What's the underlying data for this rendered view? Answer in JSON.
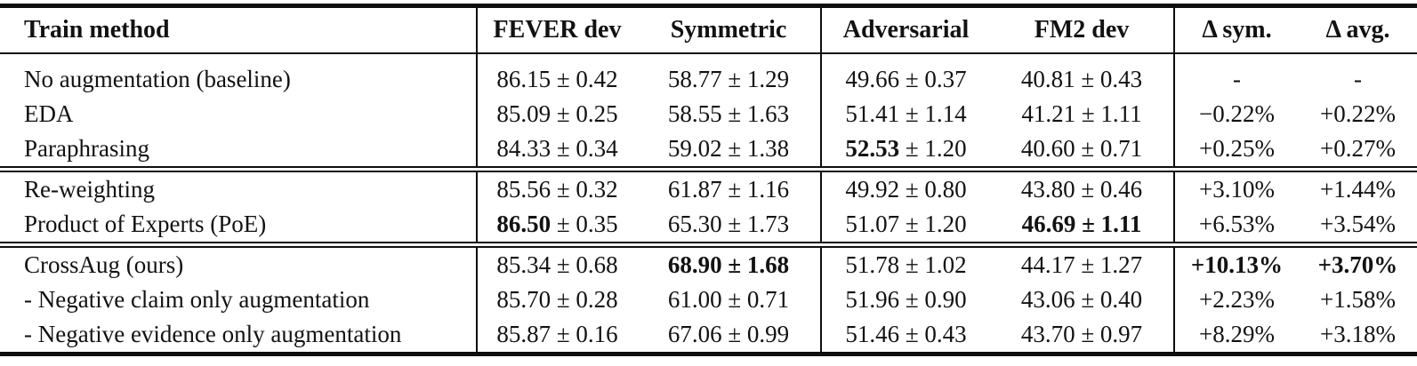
{
  "table": {
    "pm_symbol": "±",
    "columns": [
      "Train method",
      "FEVER dev",
      "Symmetric",
      "Adversarial",
      "FM2 dev",
      "Δ sym.",
      "Δ avg."
    ],
    "sections": [
      {
        "rows": [
          {
            "method": "No augmentation (baseline)",
            "scores": [
              {
                "mean": "86.15",
                "err": "0.42",
                "bold_mean": false,
                "bold_err": false
              },
              {
                "mean": "58.77",
                "err": "1.29",
                "bold_mean": false,
                "bold_err": false
              },
              {
                "mean": "49.66",
                "err": "0.37",
                "bold_mean": false,
                "bold_err": false
              },
              {
                "mean": "40.81",
                "err": "0.43",
                "bold_mean": false,
                "bold_err": false
              }
            ],
            "deltas": [
              {
                "text": "-",
                "bold": false
              },
              {
                "text": "-",
                "bold": false
              }
            ]
          },
          {
            "method": "EDA",
            "scores": [
              {
                "mean": "85.09",
                "err": "0.25",
                "bold_mean": false,
                "bold_err": false
              },
              {
                "mean": "58.55",
                "err": "1.63",
                "bold_mean": false,
                "bold_err": false
              },
              {
                "mean": "51.41",
                "err": "1.14",
                "bold_mean": false,
                "bold_err": false
              },
              {
                "mean": "41.21",
                "err": "1.11",
                "bold_mean": false,
                "bold_err": false
              }
            ],
            "deltas": [
              {
                "text": "−0.22%",
                "bold": false
              },
              {
                "text": "+0.22%",
                "bold": false
              }
            ]
          },
          {
            "method": "Paraphrasing",
            "scores": [
              {
                "mean": "84.33",
                "err": "0.34",
                "bold_mean": false,
                "bold_err": false
              },
              {
                "mean": "59.02",
                "err": "1.38",
                "bold_mean": false,
                "bold_err": false
              },
              {
                "mean": "52.53",
                "err": "1.20",
                "bold_mean": true,
                "bold_err": false
              },
              {
                "mean": "40.60",
                "err": "0.71",
                "bold_mean": false,
                "bold_err": false
              }
            ],
            "deltas": [
              {
                "text": "+0.25%",
                "bold": false
              },
              {
                "text": "+0.27%",
                "bold": false
              }
            ]
          }
        ]
      },
      {
        "rows": [
          {
            "method": "Re-weighting",
            "scores": [
              {
                "mean": "85.56",
                "err": "0.32",
                "bold_mean": false,
                "bold_err": false
              },
              {
                "mean": "61.87",
                "err": "1.16",
                "bold_mean": false,
                "bold_err": false
              },
              {
                "mean": "49.92",
                "err": "0.80",
                "bold_mean": false,
                "bold_err": false
              },
              {
                "mean": "43.80",
                "err": "0.46",
                "bold_mean": false,
                "bold_err": false
              }
            ],
            "deltas": [
              {
                "text": "+3.10%",
                "bold": false
              },
              {
                "text": "+1.44%",
                "bold": false
              }
            ]
          },
          {
            "method": "Product of Experts (PoE)",
            "scores": [
              {
                "mean": "86.50",
                "err": "0.35",
                "bold_mean": true,
                "bold_err": false
              },
              {
                "mean": "65.30",
                "err": "1.73",
                "bold_mean": false,
                "bold_err": false
              },
              {
                "mean": "51.07",
                "err": "1.20",
                "bold_mean": false,
                "bold_err": false
              },
              {
                "mean": "46.69",
                "err": "1.11",
                "bold_mean": true,
                "bold_err": true
              }
            ],
            "deltas": [
              {
                "text": "+6.53%",
                "bold": false
              },
              {
                "text": "+3.54%",
                "bold": false
              }
            ]
          }
        ]
      },
      {
        "rows": [
          {
            "method": "CrossAug (ours)",
            "scores": [
              {
                "mean": "85.34",
                "err": "0.68",
                "bold_mean": false,
                "bold_err": false
              },
              {
                "mean": "68.90",
                "err": "1.68",
                "bold_mean": true,
                "bold_err": true
              },
              {
                "mean": "51.78",
                "err": "1.02",
                "bold_mean": false,
                "bold_err": false
              },
              {
                "mean": "44.17",
                "err": "1.27",
                "bold_mean": false,
                "bold_err": false
              }
            ],
            "deltas": [
              {
                "text": "+10.13%",
                "bold": true
              },
              {
                "text": "+3.70%",
                "bold": true
              }
            ]
          },
          {
            "method": "- Negative claim only augmentation",
            "scores": [
              {
                "mean": "85.70",
                "err": "0.28",
                "bold_mean": false,
                "bold_err": false
              },
              {
                "mean": "61.00",
                "err": "0.71",
                "bold_mean": false,
                "bold_err": false
              },
              {
                "mean": "51.96",
                "err": "0.90",
                "bold_mean": false,
                "bold_err": false
              },
              {
                "mean": "43.06",
                "err": "0.40",
                "bold_mean": false,
                "bold_err": false
              }
            ],
            "deltas": [
              {
                "text": "+2.23%",
                "bold": false
              },
              {
                "text": "+1.58%",
                "bold": false
              }
            ]
          },
          {
            "method": "- Negative evidence only augmentation",
            "scores": [
              {
                "mean": "85.87",
                "err": "0.16",
                "bold_mean": false,
                "bold_err": false
              },
              {
                "mean": "67.06",
                "err": "0.99",
                "bold_mean": false,
                "bold_err": false
              },
              {
                "mean": "51.46",
                "err": "0.43",
                "bold_mean": false,
                "bold_err": false
              },
              {
                "mean": "43.70",
                "err": "0.97",
                "bold_mean": false,
                "bold_err": false
              }
            ],
            "deltas": [
              {
                "text": "+8.29%",
                "bold": false
              },
              {
                "text": "+3.18%",
                "bold": false
              }
            ]
          }
        ]
      }
    ]
  }
}
